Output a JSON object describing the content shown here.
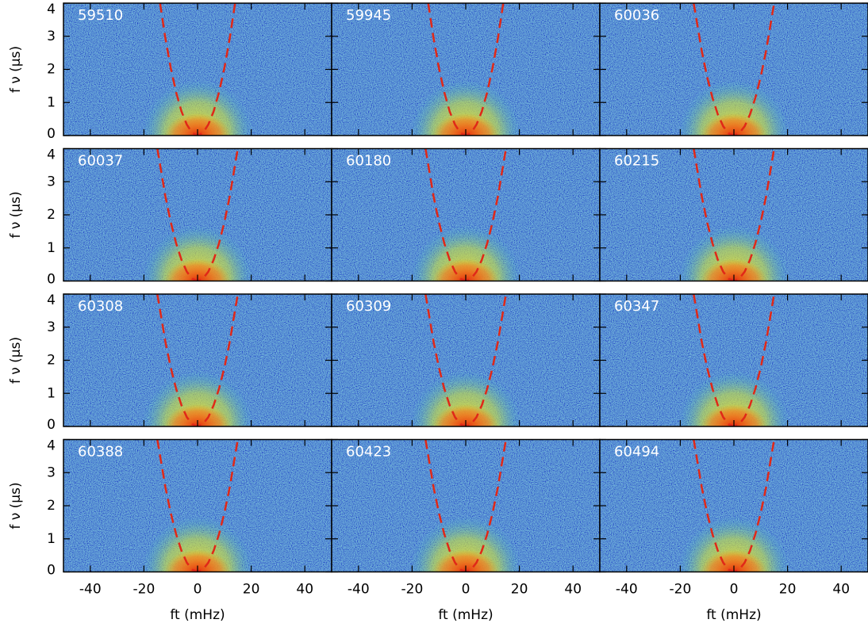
{
  "chart_data": [
    {
      "type": "line",
      "label": "59510",
      "ylabel": "f ν (μs)",
      "xlim": [
        -50,
        50
      ],
      "ylim": [
        0,
        4
      ],
      "xticks": [
        -40,
        -20,
        0,
        20,
        40
      ],
      "yticks": [
        0,
        1,
        2,
        3,
        4
      ],
      "x": [
        -14,
        -12,
        -10,
        -8,
        -6,
        -4,
        -2,
        0,
        2,
        4,
        6,
        8,
        10,
        12,
        14
      ],
      "series": [
        {
          "color": "#e02818",
          "values": [
            4.0,
            2.94,
            2.04,
            1.31,
            0.73,
            0.33,
            0.08,
            0,
            0.08,
            0.33,
            0.73,
            1.31,
            2.04,
            2.94,
            4.0
          ]
        }
      ]
    },
    {
      "type": "line",
      "label": "59945",
      "xlim": [
        -50,
        50
      ],
      "ylim": [
        0,
        4
      ],
      "xticks": [
        -40,
        -20,
        0,
        20,
        40
      ],
      "yticks": [
        0,
        1,
        2,
        3,
        4
      ],
      "x": [
        -14,
        -12,
        -10,
        -8,
        -6,
        -4,
        -2,
        0,
        2,
        4,
        6,
        8,
        10,
        12,
        14
      ],
      "series": [
        {
          "color": "#e02818",
          "values": [
            4.0,
            2.94,
            2.04,
            1.31,
            0.73,
            0.33,
            0.08,
            0,
            0.08,
            0.33,
            0.73,
            1.31,
            2.04,
            2.94,
            4.0
          ]
        }
      ]
    },
    {
      "type": "line",
      "label": "60036",
      "xlim": [
        -50,
        50
      ],
      "ylim": [
        0,
        4
      ],
      "xticks": [
        -40,
        -20,
        0,
        20,
        40
      ],
      "yticks": [
        0,
        1,
        2,
        3,
        4
      ],
      "x": [
        -15,
        -12,
        -10,
        -8,
        -6,
        -4,
        -2,
        0,
        2,
        4,
        6,
        8,
        10,
        12,
        15
      ],
      "series": [
        {
          "color": "#e02818",
          "values": [
            4.0,
            2.56,
            1.78,
            1.14,
            0.64,
            0.28,
            0.07,
            0,
            0.07,
            0.28,
            0.64,
            1.14,
            1.78,
            2.56,
            4.0
          ]
        }
      ]
    },
    {
      "type": "line",
      "label": "60037",
      "ylabel": "f ν (μs)",
      "xlim": [
        -50,
        50
      ],
      "ylim": [
        0,
        4
      ],
      "xticks": [
        -40,
        -20,
        0,
        20,
        40
      ],
      "yticks": [
        0,
        1,
        2,
        3,
        4
      ],
      "x": [
        -15,
        -12,
        -10,
        -8,
        -6,
        -4,
        -2,
        0,
        2,
        4,
        6,
        8,
        10,
        12,
        15
      ],
      "series": [
        {
          "color": "#e02818",
          "values": [
            4.0,
            2.56,
            1.78,
            1.14,
            0.64,
            0.28,
            0.07,
            0,
            0.07,
            0.28,
            0.64,
            1.14,
            1.78,
            2.56,
            4.0
          ]
        }
      ]
    },
    {
      "type": "line",
      "label": "60180",
      "xlim": [
        -50,
        50
      ],
      "ylim": [
        0,
        4
      ],
      "xticks": [
        -40,
        -20,
        0,
        20,
        40
      ],
      "yticks": [
        0,
        1,
        2,
        3,
        4
      ],
      "x": [
        -15,
        -12,
        -10,
        -8,
        -6,
        -4,
        -2,
        0,
        2,
        4,
        6,
        8,
        10,
        12,
        15
      ],
      "series": [
        {
          "color": "#e02818",
          "values": [
            4.0,
            2.56,
            1.78,
            1.14,
            0.64,
            0.28,
            0.07,
            0,
            0.07,
            0.28,
            0.64,
            1.14,
            1.78,
            2.56,
            4.0
          ]
        }
      ]
    },
    {
      "type": "line",
      "label": "60215",
      "xlim": [
        -50,
        50
      ],
      "ylim": [
        0,
        4
      ],
      "xticks": [
        -40,
        -20,
        0,
        20,
        40
      ],
      "yticks": [
        0,
        1,
        2,
        3,
        4
      ],
      "x": [
        -15,
        -12,
        -10,
        -8,
        -6,
        -4,
        -2,
        0,
        2,
        4,
        6,
        8,
        10,
        12,
        15
      ],
      "series": [
        {
          "color": "#e02818",
          "values": [
            4.0,
            2.56,
            1.78,
            1.14,
            0.64,
            0.28,
            0.07,
            0,
            0.07,
            0.28,
            0.64,
            1.14,
            1.78,
            2.56,
            4.0
          ]
        }
      ]
    },
    {
      "type": "line",
      "label": "60308",
      "ylabel": "f ν (μs)",
      "xlim": [
        -50,
        50
      ],
      "ylim": [
        0,
        4
      ],
      "xticks": [
        -40,
        -20,
        0,
        20,
        40
      ],
      "yticks": [
        0,
        1,
        2,
        3,
        4
      ],
      "x": [
        -15,
        -12,
        -10,
        -8,
        -6,
        -4,
        -2,
        0,
        2,
        4,
        6,
        8,
        10,
        12,
        15
      ],
      "series": [
        {
          "color": "#e02818",
          "values": [
            4.0,
            2.56,
            1.78,
            1.14,
            0.64,
            0.28,
            0.07,
            0,
            0.07,
            0.28,
            0.64,
            1.14,
            1.78,
            2.56,
            4.0
          ]
        }
      ]
    },
    {
      "type": "line",
      "label": "60309",
      "xlim": [
        -50,
        50
      ],
      "ylim": [
        0,
        4
      ],
      "xticks": [
        -40,
        -20,
        0,
        20,
        40
      ],
      "yticks": [
        0,
        1,
        2,
        3,
        4
      ],
      "x": [
        -15,
        -12,
        -10,
        -8,
        -6,
        -4,
        -2,
        0,
        2,
        4,
        6,
        8,
        10,
        12,
        15
      ],
      "series": [
        {
          "color": "#e02818",
          "values": [
            4.0,
            2.56,
            1.78,
            1.14,
            0.64,
            0.28,
            0.07,
            0,
            0.07,
            0.28,
            0.64,
            1.14,
            1.78,
            2.56,
            4.0
          ]
        }
      ]
    },
    {
      "type": "line",
      "label": "60347",
      "xlim": [
        -50,
        50
      ],
      "ylim": [
        0,
        4
      ],
      "xticks": [
        -40,
        -20,
        0,
        20,
        40
      ],
      "yticks": [
        0,
        1,
        2,
        3,
        4
      ],
      "x": [
        -15,
        -12,
        -10,
        -8,
        -6,
        -4,
        -2,
        0,
        2,
        4,
        6,
        8,
        10,
        12,
        15
      ],
      "series": [
        {
          "color": "#e02818",
          "values": [
            4.0,
            2.56,
            1.78,
            1.14,
            0.64,
            0.28,
            0.07,
            0,
            0.07,
            0.28,
            0.64,
            1.14,
            1.78,
            2.56,
            4.0
          ]
        }
      ]
    },
    {
      "type": "line",
      "label": "60388",
      "ylabel": "f ν (μs)",
      "xlabel": "ft (mHz)",
      "xlim": [
        -50,
        50
      ],
      "ylim": [
        0,
        4
      ],
      "xticks": [
        -40,
        -20,
        0,
        20,
        40
      ],
      "yticks": [
        0,
        1,
        2,
        3,
        4
      ],
      "x": [
        -15,
        -12,
        -10,
        -8,
        -6,
        -4,
        -2,
        0,
        2,
        4,
        6,
        8,
        10,
        12,
        15
      ],
      "series": [
        {
          "color": "#e02818",
          "values": [
            4.0,
            2.56,
            1.78,
            1.14,
            0.64,
            0.28,
            0.07,
            0,
            0.07,
            0.28,
            0.64,
            1.14,
            1.78,
            2.56,
            4.0
          ]
        }
      ]
    },
    {
      "type": "line",
      "label": "60423",
      "xlabel": "ft (mHz)",
      "xlim": [
        -50,
        50
      ],
      "ylim": [
        0,
        4
      ],
      "xticks": [
        -40,
        -20,
        0,
        20,
        40
      ],
      "yticks": [
        0,
        1,
        2,
        3,
        4
      ],
      "x": [
        -15,
        -12,
        -10,
        -8,
        -6,
        -4,
        -2,
        0,
        2,
        4,
        6,
        8,
        10,
        12,
        15
      ],
      "series": [
        {
          "color": "#e02818",
          "values": [
            4.0,
            2.56,
            1.78,
            1.14,
            0.64,
            0.28,
            0.07,
            0,
            0.07,
            0.28,
            0.64,
            1.14,
            1.78,
            2.56,
            4.0
          ]
        }
      ]
    },
    {
      "type": "line",
      "label": "60494",
      "xlabel": "ft (mHz)",
      "xlim": [
        -50,
        50
      ],
      "ylim": [
        0,
        4
      ],
      "xticks": [
        -40,
        -20,
        0,
        20,
        40
      ],
      "yticks": [
        0,
        1,
        2,
        3,
        4
      ],
      "x": [
        -15,
        -12,
        -10,
        -8,
        -6,
        -4,
        -2,
        0,
        2,
        4,
        6,
        8,
        10,
        12,
        15
      ],
      "series": [
        {
          "color": "#e02818",
          "values": [
            4.0,
            2.56,
            1.78,
            1.14,
            0.64,
            0.28,
            0.07,
            0,
            0.07,
            0.28,
            0.64,
            1.14,
            1.78,
            2.56,
            4.0
          ]
        }
      ]
    }
  ]
}
